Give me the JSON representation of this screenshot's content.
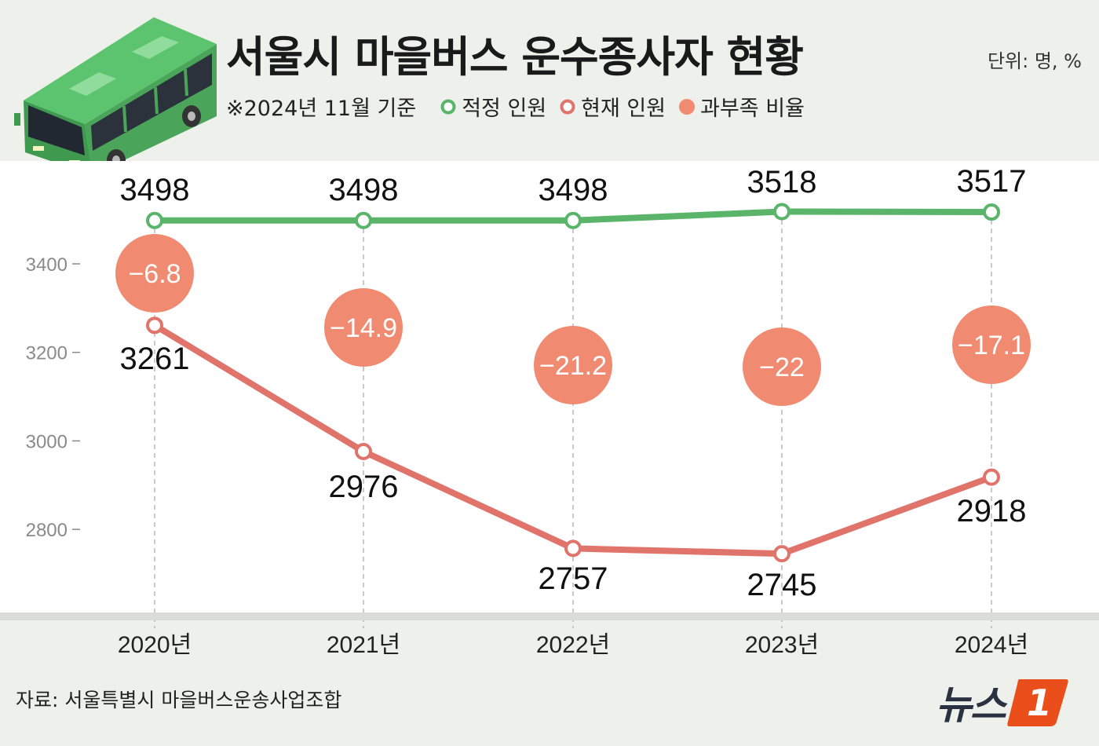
{
  "header": {
    "title": "서울시 마을버스 운수종사자 현황",
    "unit": "단위: 명, %",
    "basis": "※2024년 11월 기준"
  },
  "legend": [
    {
      "label": "적정 인원",
      "style": "hollow",
      "color": "#5ab56a"
    },
    {
      "label": "현재 인원",
      "style": "hollow",
      "color": "#e0736a"
    },
    {
      "label": "과부족 비율",
      "style": "filled",
      "color": "#f08a70"
    }
  ],
  "footer": {
    "source": "자료: 서울특별시 마을버스운송사업조합",
    "logo_text": "뉴스",
    "logo_badge": "1"
  },
  "chart_data": {
    "type": "line",
    "categories": [
      "2020년",
      "2021년",
      "2022년",
      "2023년",
      "2024년"
    ],
    "series": [
      {
        "name": "적정 인원",
        "color": "#5ab56a",
        "values": [
          3498,
          3498,
          3498,
          3518,
          3517
        ],
        "labels": [
          "3498",
          "3498",
          "3498",
          "3518",
          "3517"
        ]
      },
      {
        "name": "현재 인원",
        "color": "#e0736a",
        "values": [
          3261,
          2976,
          2757,
          2745,
          2918
        ],
        "labels": [
          "3261",
          "2976",
          "2757",
          "2745",
          "2918"
        ]
      }
    ],
    "ratio": {
      "name": "과부족 비율",
      "color": "#f08a70",
      "values": [
        -6.8,
        -14.9,
        -21.2,
        -22,
        -17.1
      ],
      "labels": [
        "−6.8",
        "−14.9",
        "−21.2",
        "−22",
        "−17.1"
      ]
    },
    "yticks": [
      3400,
      3200,
      3000,
      2800
    ],
    "ylim": [
      2600,
      3500
    ],
    "grid": "vertical dashed lines at categories"
  }
}
